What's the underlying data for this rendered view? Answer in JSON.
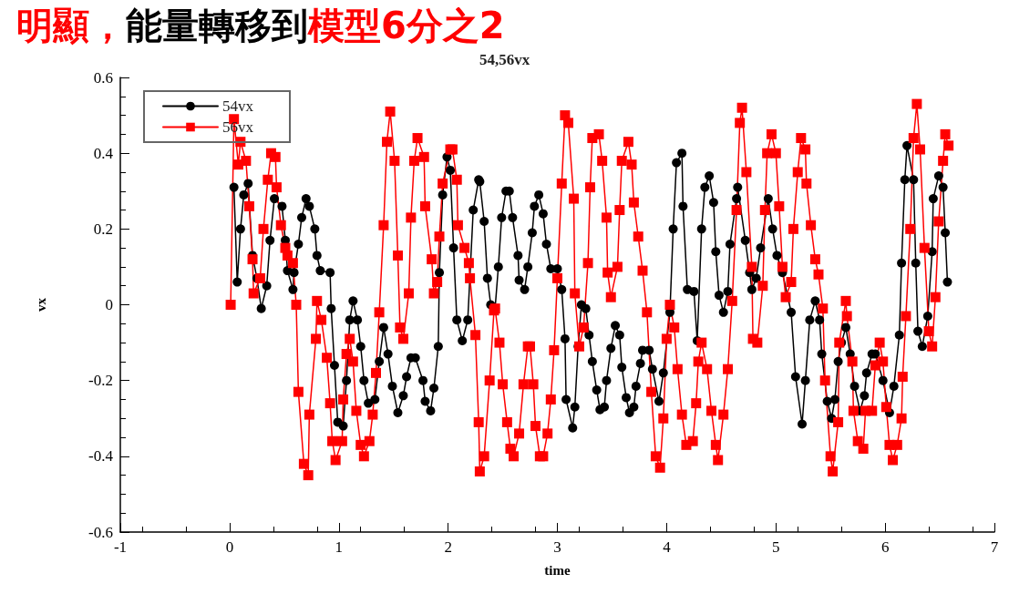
{
  "chart_data": {
    "type": "line",
    "title": "54,56vx",
    "xlabel": "time",
    "ylabel": "vx",
    "annotations": [
      "明顯，",
      "能量轉移到",
      "模型6分之2"
    ],
    "xlim": [
      -1,
      7
    ],
    "xticks": [
      -1,
      0,
      1,
      2,
      3,
      4,
      5,
      6,
      7
    ],
    "ylim": [
      -0.6,
      0.6
    ],
    "yticks": [
      -0.6,
      -0.4,
      -0.2,
      0,
      0.2,
      0.4,
      0.6
    ],
    "grid": false,
    "legend": "top left",
    "line_style": "solid",
    "series": [
      {
        "name": "54vx",
        "color": "#000000",
        "marker": "circle",
        "x": [
          0.04,
          0.07,
          0.1,
          0.13,
          0.17,
          0.21,
          0.25,
          0.29,
          0.34,
          0.37,
          0.41,
          0.48,
          0.51,
          0.53,
          0.58,
          0.59,
          0.63,
          0.66,
          0.7,
          0.73,
          0.78,
          0.8,
          0.83,
          0.92,
          0.93,
          0.96,
          0.99,
          1.04,
          1.07,
          1.1,
          1.13,
          1.17,
          1.2,
          1.23,
          1.27,
          1.33,
          1.37,
          1.41,
          1.45,
          1.49,
          1.54,
          1.59,
          1.62,
          1.66,
          1.7,
          1.77,
          1.79,
          1.84,
          1.87,
          1.91,
          1.92,
          1.95,
          1.99,
          2.02,
          2.05,
          2.08,
          2.13,
          2.18,
          2.23,
          2.28,
          2.29,
          2.33,
          2.36,
          2.39,
          2.43,
          2.46,
          2.49,
          2.53,
          2.56,
          2.59,
          2.64,
          2.65,
          2.7,
          2.73,
          2.77,
          2.79,
          2.83,
          2.87,
          2.9,
          2.94,
          3.0,
          3.04,
          3.07,
          3.08,
          3.14,
          3.16,
          3.19,
          3.22,
          3.26,
          3.29,
          3.32,
          3.36,
          3.39,
          3.43,
          3.45,
          3.49,
          3.53,
          3.57,
          3.59,
          3.63,
          3.66,
          3.7,
          3.72,
          3.76,
          3.78,
          3.84,
          3.87,
          3.93,
          3.97,
          4.03,
          4.06,
          4.09,
          4.14,
          4.15,
          4.19,
          4.25,
          4.28,
          4.32,
          4.35,
          4.39,
          4.43,
          4.45,
          4.48,
          4.52,
          4.56,
          4.58,
          4.64,
          4.65,
          4.72,
          4.76,
          4.78,
          4.82,
          4.86,
          4.93,
          4.97,
          5.01,
          5.06,
          5.14,
          5.18,
          5.24,
          5.27,
          5.31,
          5.36,
          5.4,
          5.42,
          5.47,
          5.51,
          5.54,
          5.57,
          5.6,
          5.64,
          5.68,
          5.72,
          5.77,
          5.81,
          5.83,
          5.88,
          5.91,
          5.98,
          6.04,
          6.08,
          6.13,
          6.15,
          6.18,
          6.2,
          6.26,
          6.28,
          6.3,
          6.34,
          6.39,
          6.43,
          6.44,
          6.49,
          6.53,
          6.55,
          6.57
        ],
        "values": [
          0.31,
          0.06,
          0.2,
          0.29,
          0.32,
          0.13,
          0.07,
          -0.01,
          0.05,
          0.17,
          0.28,
          0.26,
          0.17,
          0.09,
          0.04,
          0.085,
          0.16,
          0.23,
          0.28,
          0.26,
          0.2,
          0.13,
          0.09,
          0.085,
          -0.01,
          -0.16,
          -0.31,
          -0.32,
          -0.2,
          -0.04,
          0.01,
          -0.04,
          -0.11,
          -0.2,
          -0.26,
          -0.25,
          -0.15,
          -0.06,
          -0.13,
          -0.215,
          -0.285,
          -0.24,
          -0.19,
          -0.14,
          -0.14,
          -0.2,
          -0.255,
          -0.28,
          -0.22,
          -0.11,
          0.085,
          0.29,
          0.39,
          0.355,
          0.15,
          -0.04,
          -0.095,
          -0.04,
          0.25,
          0.33,
          0.325,
          0.22,
          0.07,
          0.0,
          -0.01,
          0.1,
          0.23,
          0.3,
          0.3,
          0.23,
          0.13,
          0.065,
          0.04,
          0.1,
          0.19,
          0.26,
          0.29,
          0.24,
          0.16,
          0.095,
          0.095,
          0.04,
          -0.09,
          -0.25,
          -0.325,
          -0.27,
          -0.11,
          0.0,
          -0.01,
          -0.08,
          -0.15,
          -0.225,
          -0.277,
          -0.27,
          -0.2,
          -0.115,
          -0.055,
          -0.08,
          -0.165,
          -0.245,
          -0.285,
          -0.27,
          -0.215,
          -0.155,
          -0.12,
          -0.12,
          -0.17,
          -0.255,
          -0.18,
          -0.02,
          0.2,
          0.375,
          0.4,
          0.26,
          0.04,
          0.035,
          -0.095,
          0.2,
          0.31,
          0.34,
          0.27,
          0.14,
          0.025,
          -0.02,
          0.035,
          0.16,
          0.28,
          0.31,
          0.17,
          0.085,
          0.04,
          0.07,
          0.15,
          0.28,
          0.2,
          0.13,
          0.085,
          -0.02,
          -0.19,
          -0.315,
          -0.2,
          -0.04,
          0.01,
          -0.04,
          -0.13,
          -0.255,
          -0.3,
          -0.25,
          -0.15,
          -0.1,
          -0.06,
          -0.13,
          -0.215,
          -0.28,
          -0.24,
          -0.18,
          -0.13,
          -0.13,
          -0.2,
          -0.285,
          -0.215,
          -0.08,
          0.11,
          0.33,
          0.42,
          0.33,
          0.11,
          -0.07,
          -0.11,
          -0.03,
          0.14,
          0.28,
          0.34,
          0.31,
          0.19,
          0.06
        ]
      },
      {
        "name": "56vx",
        "color": "#ff0000",
        "marker": "square",
        "x": [
          0.01,
          0.04,
          0.08,
          0.1,
          0.15,
          0.18,
          0.21,
          0.22,
          0.28,
          0.31,
          0.35,
          0.38,
          0.42,
          0.43,
          0.47,
          0.51,
          0.53,
          0.58,
          0.61,
          0.63,
          0.68,
          0.72,
          0.73,
          0.79,
          0.8,
          0.84,
          0.89,
          0.92,
          0.94,
          0.97,
          1.03,
          1.04,
          1.07,
          1.1,
          1.13,
          1.16,
          1.2,
          1.23,
          1.28,
          1.31,
          1.34,
          1.37,
          1.41,
          1.44,
          1.47,
          1.51,
          1.54,
          1.56,
          1.59,
          1.64,
          1.66,
          1.69,
          1.72,
          1.78,
          1.79,
          1.85,
          1.87,
          1.9,
          1.92,
          1.95,
          2.02,
          2.04,
          2.08,
          2.09,
          2.15,
          2.19,
          2.2,
          2.25,
          2.28,
          2.29,
          2.33,
          2.38,
          2.42,
          2.43,
          2.47,
          2.5,
          2.54,
          2.57,
          2.6,
          2.65,
          2.69,
          2.73,
          2.75,
          2.78,
          2.8,
          2.84,
          2.87,
          2.91,
          2.94,
          2.97,
          3.0,
          3.04,
          3.07,
          3.1,
          3.15,
          3.16,
          3.2,
          3.24,
          3.28,
          3.3,
          3.32,
          3.38,
          3.41,
          3.45,
          3.46,
          3.49,
          3.55,
          3.57,
          3.59,
          3.65,
          3.68,
          3.7,
          3.74,
          3.78,
          3.82,
          3.86,
          3.9,
          3.94,
          3.97,
          4.0,
          4.03,
          4.07,
          4.1,
          4.14,
          4.18,
          4.24,
          4.27,
          4.29,
          4.32,
          4.37,
          4.41,
          4.45,
          4.47,
          4.52,
          4.56,
          4.6,
          4.64,
          4.67,
          4.69,
          4.73,
          4.78,
          4.79,
          4.83,
          4.88,
          4.9,
          4.92,
          4.96,
          5.0,
          5.03,
          5.06,
          5.09,
          5.14,
          5.16,
          5.2,
          5.23,
          5.27,
          5.28,
          5.32,
          5.36,
          5.39,
          5.43,
          5.45,
          5.5,
          5.52,
          5.57,
          5.58,
          5.64,
          5.65,
          5.7,
          5.71,
          5.75,
          5.8,
          5.82,
          5.88,
          5.91,
          5.95,
          5.98,
          6.01,
          6.04,
          6.07,
          6.11,
          6.15,
          6.16,
          6.19,
          6.23,
          6.26,
          6.29,
          6.32,
          6.36,
          6.4,
          6.43,
          6.46,
          6.49,
          6.53,
          6.55,
          6.58
        ],
        "values": [
          0.0,
          0.49,
          0.37,
          0.43,
          0.38,
          0.26,
          0.12,
          0.03,
          0.07,
          0.2,
          0.33,
          0.4,
          0.39,
          0.31,
          0.21,
          0.15,
          0.13,
          0.11,
          0.0,
          -0.23,
          -0.42,
          -0.45,
          -0.29,
          -0.09,
          0.01,
          -0.04,
          -0.14,
          -0.26,
          -0.36,
          -0.41,
          -0.36,
          -0.25,
          -0.13,
          -0.09,
          -0.15,
          -0.28,
          -0.37,
          -0.4,
          -0.36,
          -0.29,
          -0.18,
          -0.02,
          0.21,
          0.43,
          0.51,
          0.38,
          0.13,
          -0.06,
          -0.09,
          0.03,
          0.23,
          0.38,
          0.44,
          0.39,
          0.26,
          0.12,
          0.03,
          0.06,
          0.18,
          0.32,
          0.41,
          0.41,
          0.33,
          0.21,
          0.15,
          0.11,
          0.07,
          -0.08,
          -0.31,
          -0.44,
          -0.4,
          -0.2,
          -0.015,
          -0.01,
          -0.1,
          -0.21,
          -0.31,
          -0.38,
          -0.4,
          -0.34,
          -0.21,
          -0.11,
          -0.11,
          -0.21,
          -0.32,
          -0.4,
          -0.4,
          -0.34,
          -0.25,
          -0.12,
          0.07,
          0.32,
          0.5,
          0.48,
          0.28,
          0.03,
          -0.11,
          -0.06,
          0.11,
          0.31,
          0.44,
          0.45,
          0.38,
          0.23,
          0.085,
          0.02,
          0.1,
          0.25,
          0.38,
          0.43,
          0.37,
          0.27,
          0.18,
          0.09,
          -0.02,
          -0.23,
          -0.4,
          -0.43,
          -0.3,
          -0.09,
          0.0,
          -0.06,
          -0.17,
          -0.29,
          -0.37,
          -0.36,
          -0.26,
          -0.15,
          -0.1,
          -0.17,
          -0.28,
          -0.37,
          -0.41,
          -0.29,
          -0.17,
          0.01,
          0.25,
          0.48,
          0.52,
          0.35,
          0.1,
          -0.09,
          -0.1,
          0.05,
          0.25,
          0.4,
          0.45,
          0.4,
          0.26,
          0.1,
          0.02,
          0.06,
          0.2,
          0.35,
          0.44,
          0.41,
          0.32,
          0.21,
          0.12,
          0.08,
          -0.01,
          -0.2,
          -0.4,
          -0.44,
          -0.31,
          -0.1,
          0.01,
          -0.03,
          -0.15,
          -0.28,
          -0.36,
          -0.38,
          -0.28,
          -0.28,
          -0.16,
          -0.1,
          -0.15,
          -0.27,
          -0.37,
          -0.41,
          -0.37,
          -0.3,
          -0.19,
          -0.03,
          0.2,
          0.44,
          0.53,
          0.41,
          0.15,
          -0.07,
          -0.11,
          0.02,
          0.22,
          0.38,
          0.45,
          0.42
        ]
      }
    ]
  }
}
